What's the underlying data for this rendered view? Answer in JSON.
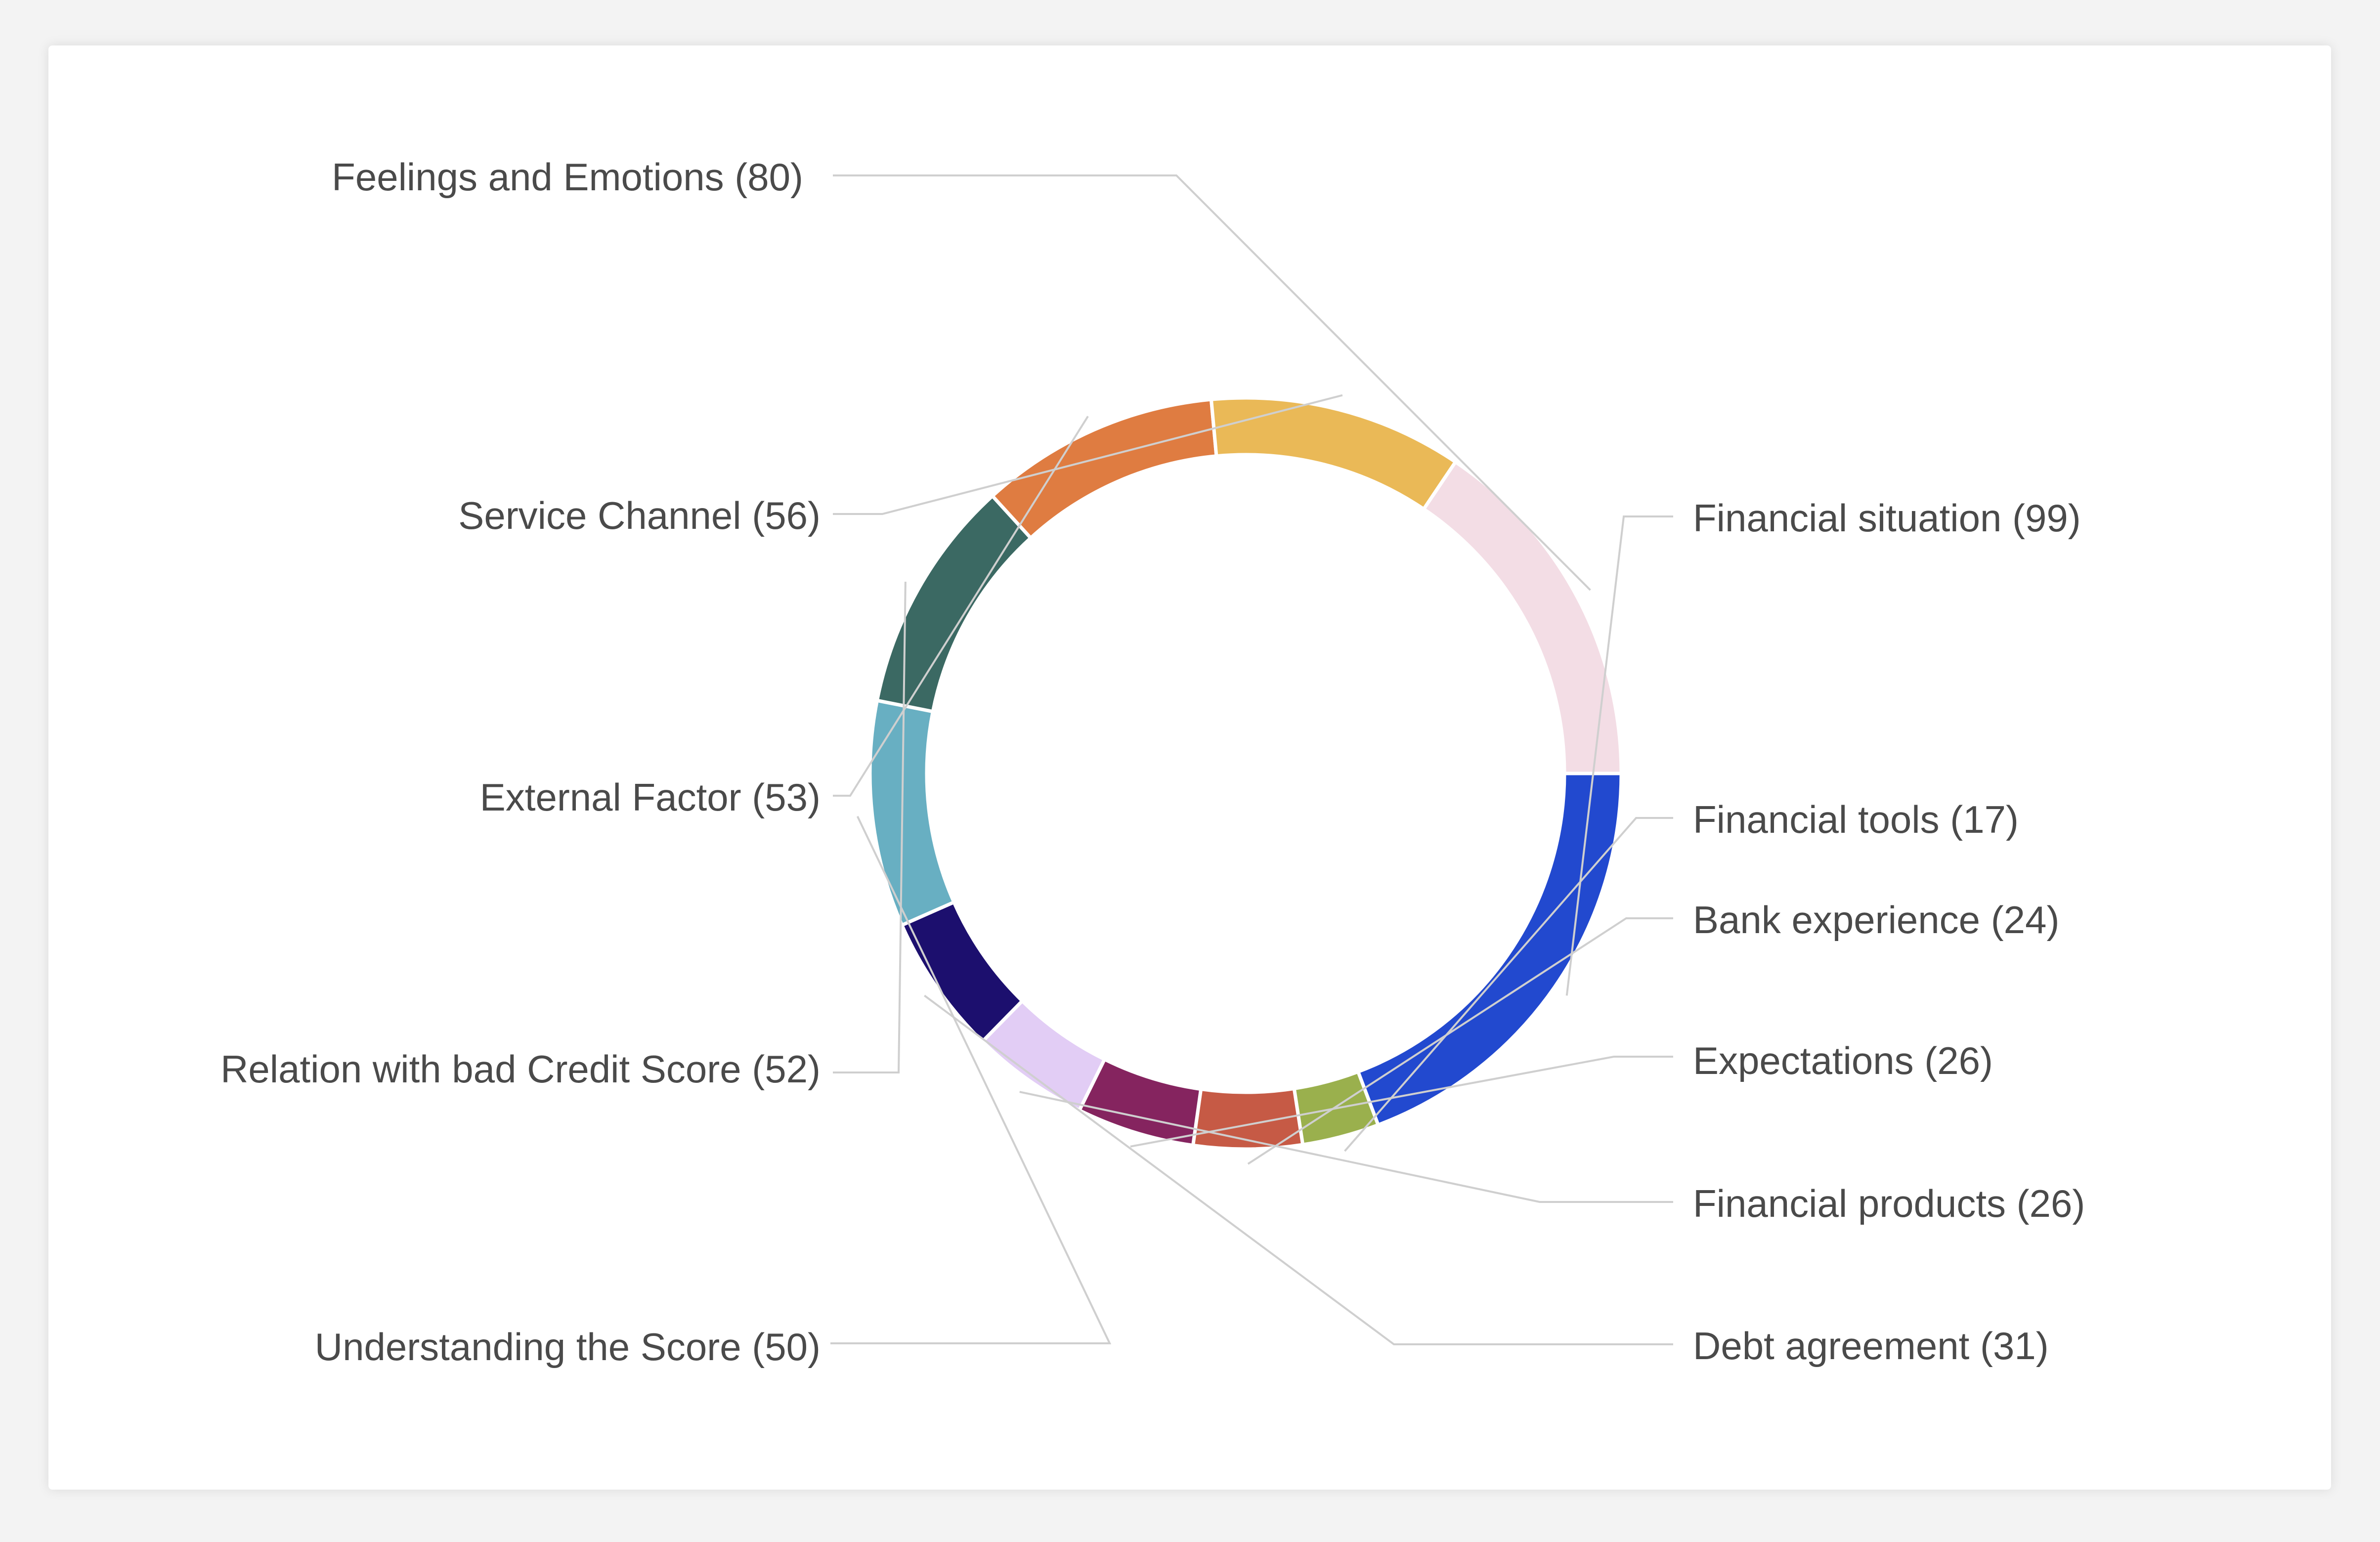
{
  "chart_data": {
    "type": "pie",
    "variant": "donut",
    "legend": "none",
    "categories": [
      "Financial situation",
      "Financial tools",
      "Bank experience",
      "Expectations",
      "Financial products",
      "Debt agreement",
      "Understanding the Score",
      "Relation with bad Credit Score",
      "External Factor",
      "Service Channel",
      "Feelings and Emotions"
    ],
    "values": [
      99,
      17,
      24,
      26,
      26,
      31,
      50,
      52,
      53,
      56,
      80
    ],
    "colors": [
      "#2249cf",
      "#9ab04d",
      "#c65a45",
      "#85245f",
      "#e2cdf5",
      "#1c0f6e",
      "#68afc2",
      "#3b6963",
      "#df7c41",
      "#eab957",
      "#f3dde5"
    ],
    "labels": [
      "Financial situation (99)",
      "Financial tools (17)",
      "Bank experience (24)",
      "Expectations (26)",
      "Financial products (26)",
      "Debt agreement (31)",
      "Understanding the Score (50)",
      "Relation with bad Credit Score (52)",
      "External Factor (53)",
      "Service Channel (56)",
      "Feelings and Emotions (80)"
    ]
  }
}
